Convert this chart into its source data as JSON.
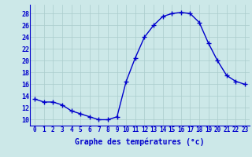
{
  "hours": [
    0,
    1,
    2,
    3,
    4,
    5,
    6,
    7,
    8,
    9,
    10,
    11,
    12,
    13,
    14,
    15,
    16,
    17,
    18,
    19,
    20,
    21,
    22,
    23
  ],
  "temps": [
    13.5,
    13,
    13,
    12.5,
    11.5,
    11,
    10.5,
    10,
    10,
    10.5,
    16.5,
    20.5,
    24,
    26,
    27.5,
    28,
    28.2,
    28,
    26.5,
    23,
    20,
    17.5,
    16.5,
    16
  ],
  "line_color": "#0000cc",
  "marker": "+",
  "marker_size": 4,
  "marker_linewidth": 1.0,
  "line_width": 1.0,
  "bg_color": "#cce8e8",
  "grid_color": "#aacccc",
  "xlabel": "Graphe des températures (°c)",
  "xlabel_fontsize": 7,
  "ylabel_ticks": [
    10,
    12,
    14,
    16,
    18,
    20,
    22,
    24,
    26,
    28
  ],
  "ylim": [
    9.0,
    29.5
  ],
  "xlim": [
    -0.5,
    23.5
  ],
  "tick_color": "#0000cc",
  "tick_fontsize": 5.5,
  "spine_color": "#0000cc"
}
